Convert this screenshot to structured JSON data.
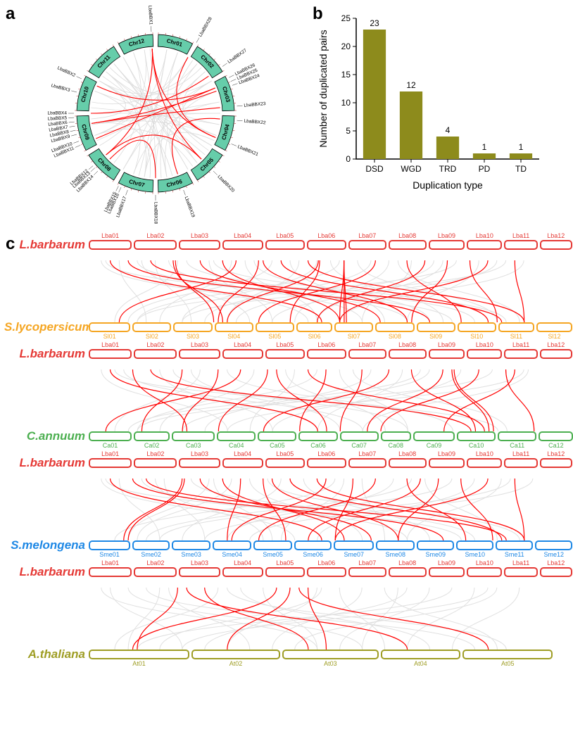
{
  "panels": {
    "a": "a",
    "b": "b",
    "c": "c"
  },
  "circos": {
    "chromosomes": [
      "Chr01",
      "Chr02",
      "Chr03",
      "Chr04",
      "Chr05",
      "Chr06",
      "Chr07",
      "Chr08",
      "Chr09",
      "Chr10",
      "Chr11",
      "Chr12"
    ],
    "chr_color": "#66cdaa",
    "chr_border": "#000000",
    "tick_font_size": 5,
    "gene_labels": [
      "LbaBBX1",
      "LbaBBX2",
      "LbaBBX3",
      "LbaBBX4",
      "LbaBBX5",
      "LbaBBX6",
      "LbaBBX7",
      "LbaBBX8",
      "LbaBBX9",
      "LbaBBX10",
      "LbaBBX11",
      "LbaBBX12",
      "LbaBBX13",
      "LbaBBX14",
      "LbaBBX15",
      "LbaBBX16",
      "LbaBBX17",
      "LbaBBX18",
      "LbaBBX19",
      "LbaBBX20",
      "LbaBBX21",
      "LbaBBX22",
      "LbaBBX23",
      "LbaBBX24",
      "LbaBBX25",
      "LbaBBX26",
      "LbaBBX27",
      "LbaBBX28"
    ],
    "gene_angles": [
      357,
      295,
      285,
      270,
      267,
      264,
      261,
      258,
      255,
      250,
      247,
      230,
      228,
      225,
      207,
      205,
      200,
      180,
      160,
      135,
      112,
      95,
      85,
      70,
      67,
      64,
      55,
      30
    ],
    "link_color_bg": "#dcdcdc",
    "link_color_hl": "#ff0000",
    "bg_links": [
      [
        10,
        190
      ],
      [
        20,
        210
      ],
      [
        30,
        250
      ],
      [
        40,
        300
      ],
      [
        50,
        110
      ],
      [
        60,
        140
      ],
      [
        70,
        170
      ],
      [
        80,
        200
      ],
      [
        90,
        260
      ],
      [
        100,
        310
      ],
      [
        110,
        260
      ],
      [
        115,
        190
      ],
      [
        120,
        320
      ],
      [
        125,
        355
      ],
      [
        135,
        305
      ],
      [
        145,
        250
      ],
      [
        150,
        320
      ],
      [
        160,
        20
      ],
      [
        165,
        300
      ],
      [
        170,
        330
      ],
      [
        175,
        35
      ],
      [
        180,
        40
      ],
      [
        185,
        260
      ],
      [
        190,
        290
      ],
      [
        195,
        10
      ],
      [
        200,
        310
      ],
      [
        210,
        50
      ],
      [
        220,
        340
      ],
      [
        230,
        60
      ],
      [
        240,
        10
      ],
      [
        245,
        70
      ],
      [
        250,
        350
      ],
      [
        260,
        80
      ],
      [
        265,
        300
      ],
      [
        270,
        90
      ],
      [
        275,
        100
      ],
      [
        280,
        30
      ],
      [
        290,
        110
      ],
      [
        295,
        45
      ],
      [
        300,
        120
      ],
      [
        310,
        130
      ],
      [
        315,
        60
      ],
      [
        320,
        140
      ],
      [
        330,
        150
      ],
      [
        340,
        170
      ],
      [
        350,
        180
      ]
    ],
    "hl_links": [
      [
        357,
        230
      ],
      [
        357,
        135
      ],
      [
        295,
        67
      ],
      [
        270,
        55
      ],
      [
        261,
        85
      ],
      [
        261,
        70
      ],
      [
        247,
        67
      ],
      [
        230,
        135
      ],
      [
        225,
        180
      ],
      [
        160,
        95
      ],
      [
        112,
        30
      ],
      [
        357,
        112
      ]
    ]
  },
  "bar_chart": {
    "type": "bar",
    "title": "",
    "xlabel": "Duplication type",
    "ylabel": "Number of duplicated pairs",
    "categories": [
      "DSD",
      "WGD",
      "TRD",
      "PD",
      "TD"
    ],
    "values": [
      23,
      12,
      4,
      1,
      1
    ],
    "bar_color": "#8d8b1c",
    "ylim": [
      0,
      25
    ],
    "ytick_step": 5,
    "bar_width": 0.62,
    "label_fontsize": 14,
    "tick_fontsize": 12,
    "value_fontsize": 12,
    "axis_color": "#000000",
    "background_color": "#ffffff"
  },
  "synteny": {
    "lba": {
      "name": "L.barbarum",
      "color": "#e53935",
      "chroms": [
        "Lba01",
        "Lba02",
        "Lba03",
        "Lba04",
        "Lba05",
        "Lba06",
        "Lba07",
        "Lba08",
        "Lba09",
        "Lba10",
        "Lba11",
        "Lba12"
      ],
      "widths": [
        55,
        55,
        52,
        52,
        50,
        50,
        48,
        48,
        46,
        44,
        42,
        40
      ]
    },
    "species": [
      {
        "name": "S.lycopersicum",
        "color": "#f5a623",
        "chroms": [
          "Sl01",
          "Sl02",
          "Sl03",
          "Sl04",
          "Sl05",
          "Sl06",
          "Sl07",
          "Sl08",
          "Sl09",
          "Sl10",
          "Sl11",
          "Sl12"
        ],
        "widths": [
          54,
          50,
          50,
          50,
          50,
          46,
          50,
          50,
          50,
          50,
          46,
          46
        ],
        "links": [
          [
            0.04,
            0.51,
            1
          ],
          [
            0.08,
            0.75,
            1
          ],
          [
            0.13,
            0.91,
            1
          ],
          [
            0.18,
            0.29,
            1
          ],
          [
            0.185,
            0.27,
            1
          ],
          [
            0.24,
            0.64,
            1
          ],
          [
            0.29,
            0.55,
            1
          ],
          [
            0.32,
            0.06,
            1
          ],
          [
            0.37,
            0.28,
            1
          ],
          [
            0.38,
            0.7,
            1
          ],
          [
            0.42,
            0.88,
            1
          ],
          [
            0.48,
            0.96,
            1
          ],
          [
            0.503,
            0.3,
            1
          ],
          [
            0.506,
            0.44,
            1
          ],
          [
            0.56,
            0.55,
            1
          ],
          [
            0.56,
            0.56,
            1
          ],
          [
            0.56,
            0.565,
            1
          ],
          [
            0.63,
            0.37,
            1
          ],
          [
            0.7,
            0.82,
            1
          ],
          [
            0.74,
            0.5,
            1
          ],
          [
            0.79,
            0.71,
            1
          ],
          [
            0.84,
            0.9,
            1
          ],
          [
            0.88,
            0.55,
            1
          ],
          [
            0.94,
            0.96,
            1
          ],
          [
            0.02,
            0.48,
            0
          ],
          [
            0.06,
            0.12,
            0
          ],
          [
            0.1,
            0.7,
            0
          ],
          [
            0.14,
            0.22,
            0
          ],
          [
            0.17,
            0.6,
            0
          ],
          [
            0.21,
            0.85,
            0
          ],
          [
            0.26,
            0.4,
            0
          ],
          [
            0.31,
            0.15,
            0
          ],
          [
            0.34,
            0.5,
            0
          ],
          [
            0.4,
            0.08,
            0
          ],
          [
            0.44,
            0.65,
            0
          ],
          [
            0.5,
            0.2,
            0
          ],
          [
            0.53,
            0.78,
            0
          ],
          [
            0.59,
            0.9,
            0
          ],
          [
            0.62,
            0.25,
            0
          ],
          [
            0.66,
            0.45,
            0
          ],
          [
            0.71,
            0.6,
            0
          ],
          [
            0.76,
            0.32,
            0
          ],
          [
            0.81,
            0.1,
            0
          ],
          [
            0.86,
            0.7,
            0
          ],
          [
            0.9,
            0.4,
            0
          ],
          [
            0.96,
            0.55,
            0
          ],
          [
            0.03,
            0.8,
            0
          ],
          [
            0.11,
            0.35,
            0
          ],
          [
            0.19,
            0.05,
            0
          ],
          [
            0.27,
            0.92,
            0
          ],
          [
            0.36,
            0.75,
            0
          ],
          [
            0.46,
            0.3,
            0
          ],
          [
            0.55,
            0.1,
            0
          ],
          [
            0.68,
            0.95,
            0
          ],
          [
            0.78,
            0.5,
            0
          ],
          [
            0.92,
            0.2,
            0
          ]
        ]
      },
      {
        "name": "C.annuum",
        "color": "#4caf50",
        "chroms": [
          "Ca01",
          "Ca02",
          "Ca03",
          "Ca04",
          "Ca05",
          "Ca06",
          "Ca07",
          "Ca08",
          "Ca09",
          "Ca10",
          "Ca11",
          "Ca12"
        ],
        "widths": [
          58,
          48,
          58,
          52,
          52,
          52,
          52,
          40,
          56,
          52,
          52,
          46
        ],
        "links": [
          [
            0.04,
            0.5,
            1
          ],
          [
            0.09,
            0.21,
            1
          ],
          [
            0.13,
            0.84,
            1
          ],
          [
            0.2,
            0.11,
            1
          ],
          [
            0.28,
            0.2,
            1
          ],
          [
            0.33,
            0.03,
            1
          ],
          [
            0.39,
            0.28,
            1
          ],
          [
            0.41,
            0.52,
            1
          ],
          [
            0.48,
            0.87,
            1
          ],
          [
            0.52,
            0.46,
            1
          ],
          [
            0.6,
            0.55,
            1
          ],
          [
            0.66,
            0.38,
            1
          ],
          [
            0.71,
            0.85,
            1
          ],
          [
            0.78,
            0.61,
            1
          ],
          [
            0.8,
            0.88,
            1
          ],
          [
            0.805,
            0.89,
            1
          ],
          [
            0.86,
            0.64,
            1
          ],
          [
            0.92,
            0.98,
            1
          ],
          [
            0.94,
            0.78,
            1
          ],
          [
            0.02,
            0.3,
            0
          ],
          [
            0.07,
            0.6,
            0
          ],
          [
            0.15,
            0.4,
            0
          ],
          [
            0.18,
            0.7,
            0
          ],
          [
            0.24,
            0.05,
            0
          ],
          [
            0.3,
            0.8,
            0
          ],
          [
            0.36,
            0.15,
            0
          ],
          [
            0.43,
            0.65,
            0
          ],
          [
            0.5,
            0.1,
            0
          ],
          [
            0.55,
            0.7,
            0
          ],
          [
            0.62,
            0.25,
            0
          ],
          [
            0.69,
            0.5,
            0
          ],
          [
            0.75,
            0.2,
            0
          ],
          [
            0.82,
            0.4,
            0
          ],
          [
            0.89,
            0.1,
            0
          ],
          [
            0.97,
            0.6,
            0
          ],
          [
            0.05,
            0.9,
            0
          ],
          [
            0.22,
            0.55,
            0
          ],
          [
            0.45,
            0.35,
            0
          ],
          [
            0.58,
            0.92,
            0
          ],
          [
            0.73,
            0.08,
            0
          ],
          [
            0.96,
            0.3,
            0
          ]
        ]
      },
      {
        "name": "S.melongena",
        "color": "#1e88e5",
        "chroms": [
          "Sme01",
          "Sme02",
          "Sme03",
          "Sme04",
          "Sme05",
          "Sme06",
          "Sme07",
          "Sme08",
          "Sme09",
          "Sme10",
          "Sme11",
          "Sme12"
        ],
        "widths": [
          54,
          48,
          50,
          50,
          50,
          48,
          52,
          50,
          48,
          48,
          48,
          48
        ],
        "links": [
          [
            0.04,
            0.51,
            1
          ],
          [
            0.09,
            0.78,
            1
          ],
          [
            0.12,
            0.92,
            1
          ],
          [
            0.2,
            0.07,
            1
          ],
          [
            0.205,
            0.08,
            1
          ],
          [
            0.24,
            0.62,
            1
          ],
          [
            0.29,
            0.56,
            1
          ],
          [
            0.33,
            0.3,
            1
          ],
          [
            0.38,
            0.43,
            1
          ],
          [
            0.4,
            0.68,
            1
          ],
          [
            0.44,
            0.91,
            1
          ],
          [
            0.5,
            0.96,
            1
          ],
          [
            0.52,
            0.31,
            1
          ],
          [
            0.58,
            0.54,
            1
          ],
          [
            0.63,
            0.37,
            1
          ],
          [
            0.7,
            0.83,
            1
          ],
          [
            0.73,
            0.48,
            1
          ],
          [
            0.77,
            0.68,
            1
          ],
          [
            0.82,
            0.89,
            1
          ],
          [
            0.88,
            0.54,
            1
          ],
          [
            0.94,
            0.96,
            1
          ],
          [
            0.02,
            0.45,
            0
          ],
          [
            0.06,
            0.15,
            0
          ],
          [
            0.11,
            0.7,
            0
          ],
          [
            0.16,
            0.25,
            0
          ],
          [
            0.22,
            0.85,
            0
          ],
          [
            0.27,
            0.4,
            0
          ],
          [
            0.31,
            0.1,
            0
          ],
          [
            0.35,
            0.6,
            0
          ],
          [
            0.42,
            0.2,
            0
          ],
          [
            0.47,
            0.75,
            0
          ],
          [
            0.54,
            0.05,
            0
          ],
          [
            0.6,
            0.65,
            0
          ],
          [
            0.67,
            0.3,
            0
          ],
          [
            0.74,
            0.9,
            0
          ],
          [
            0.8,
            0.15,
            0
          ],
          [
            0.85,
            0.5,
            0
          ],
          [
            0.91,
            0.7,
            0
          ],
          [
            0.98,
            0.35,
            0
          ],
          [
            0.03,
            0.82,
            0
          ],
          [
            0.14,
            0.38,
            0
          ],
          [
            0.26,
            0.08,
            0
          ],
          [
            0.39,
            0.95,
            0
          ],
          [
            0.56,
            0.42,
            0
          ],
          [
            0.71,
            0.12,
            0
          ],
          [
            0.93,
            0.25,
            0
          ]
        ]
      },
      {
        "name": "A.thaliana",
        "color": "#9e9d24",
        "chroms": [
          "At01",
          "At02",
          "At03",
          "At04",
          "At05"
        ],
        "widths": [
          132,
          116,
          126,
          104,
          118
        ],
        "links": [
          [
            0.19,
            0.1,
            1
          ],
          [
            0.21,
            0.7,
            1
          ],
          [
            0.25,
            0.48,
            1
          ],
          [
            0.41,
            0.09,
            1
          ],
          [
            0.44,
            0.3,
            1
          ],
          [
            0.46,
            0.88,
            1
          ],
          [
            0.48,
            0.52,
            1
          ],
          [
            0.04,
            0.2,
            0
          ],
          [
            0.08,
            0.6,
            0
          ],
          [
            0.12,
            0.85,
            0
          ],
          [
            0.17,
            0.35,
            0
          ],
          [
            0.28,
            0.05,
            0
          ],
          [
            0.33,
            0.75,
            0
          ],
          [
            0.38,
            0.5,
            0
          ],
          [
            0.51,
            0.15,
            0
          ],
          [
            0.55,
            0.65,
            0
          ],
          [
            0.6,
            0.4,
            0
          ],
          [
            0.65,
            0.9,
            0
          ],
          [
            0.7,
            0.25,
            0
          ],
          [
            0.75,
            0.55,
            0
          ],
          [
            0.8,
            0.1,
            0
          ],
          [
            0.85,
            0.7,
            0
          ],
          [
            0.9,
            0.45,
            0
          ],
          [
            0.95,
            0.8,
            0
          ],
          [
            0.02,
            0.5,
            0
          ],
          [
            0.15,
            0.08,
            0
          ],
          [
            0.3,
            0.92,
            0
          ],
          [
            0.5,
            0.3,
            0
          ],
          [
            0.68,
            0.6,
            0
          ],
          [
            0.88,
            0.2,
            0
          ]
        ]
      }
    ],
    "link_hl": "#ff0000",
    "link_bg": "#e0e0e0",
    "label_top": true,
    "block_height": 140
  }
}
